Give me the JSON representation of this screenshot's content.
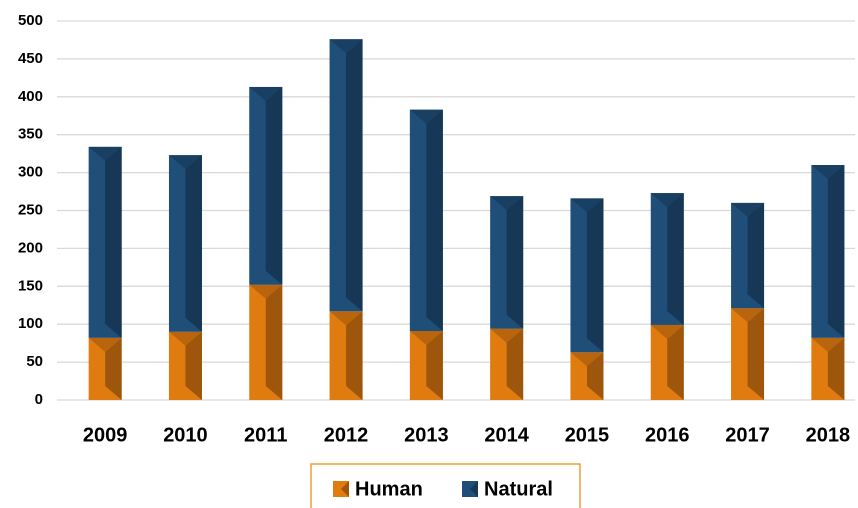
{
  "chart_data": {
    "type": "stacked-bar",
    "categories": [
      "2009",
      "2010",
      "2011",
      "2012",
      "2013",
      "2014",
      "2015",
      "2016",
      "2017",
      "2018"
    ],
    "series": [
      {
        "name": "Human",
        "color": "#e07b10",
        "values": [
          82,
          90,
          152,
          117,
          91,
          94,
          63,
          99,
          121,
          82
        ]
      },
      {
        "name": "Natural",
        "color": "#1f4e79",
        "values": [
          252,
          233,
          261,
          359,
          292,
          175,
          203,
          174,
          139,
          228
        ]
      }
    ],
    "ylim": [
      0,
      500
    ],
    "yticks": [
      0,
      50,
      100,
      150,
      200,
      250,
      300,
      350,
      400,
      450,
      500
    ],
    "grid": true,
    "legend": "bottom"
  }
}
